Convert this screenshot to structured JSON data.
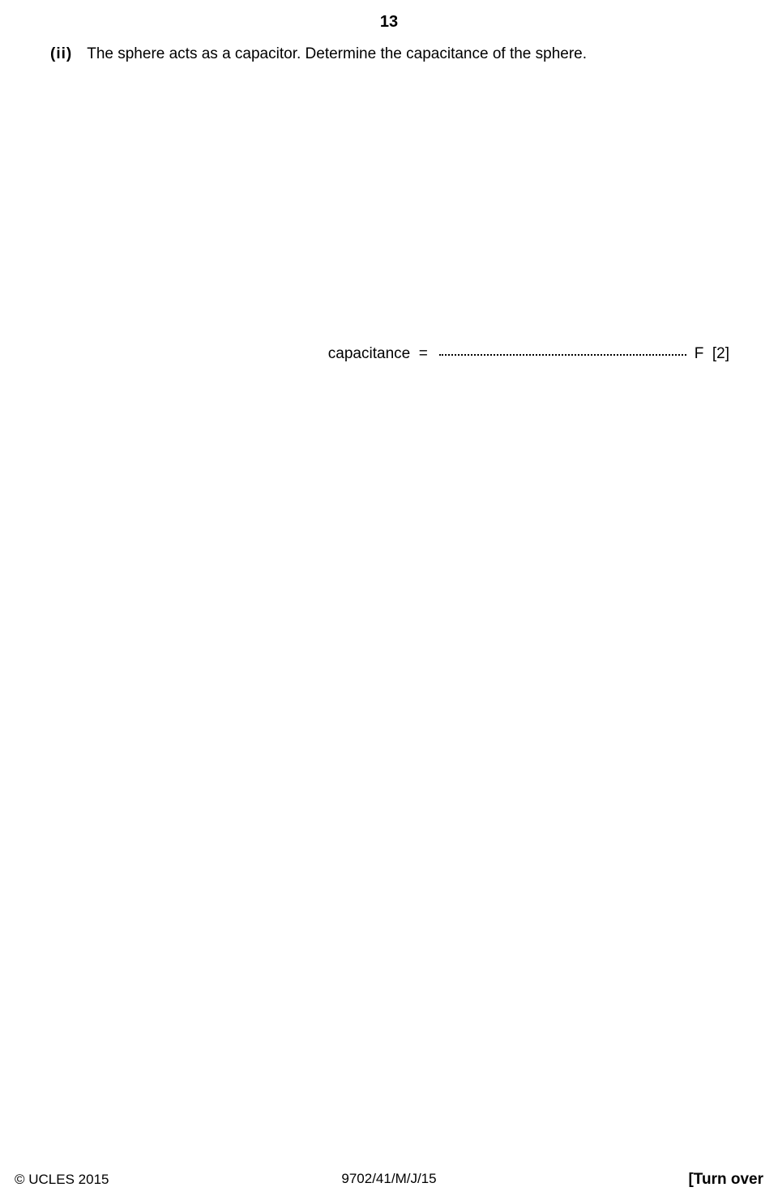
{
  "page_number": "13",
  "question": {
    "part_label": "(ii)",
    "text": "The sphere acts as a capacitor. Determine the capacitance of the sphere."
  },
  "answer": {
    "label": "capacitance  =  ",
    "unit_and_marks": " F  [2]"
  },
  "footer": {
    "copyright": "© UCLES 2015",
    "paper_code": "9702/41/M/J/15",
    "turn_over": "[Turn over"
  }
}
